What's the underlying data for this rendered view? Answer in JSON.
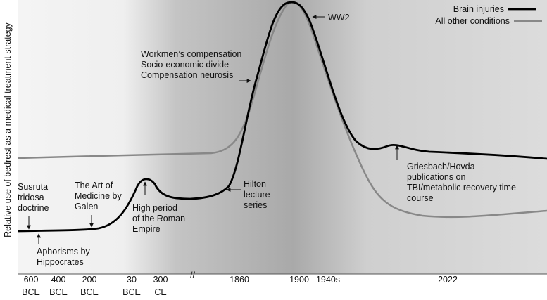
{
  "y_label": "Relative use of bedrest as a medical treatment strategy",
  "legend": [
    "Brain injuries",
    "All other conditions"
  ],
  "x_ticks": [
    [
      "600",
      "BCE"
    ],
    [
      "400",
      "BCE"
    ],
    [
      "200",
      "BCE"
    ],
    [
      "30",
      "BCE"
    ],
    [
      "300",
      "CE"
    ],
    [
      "1860"
    ],
    [
      "1900"
    ],
    [
      "1940s"
    ],
    [
      "2022"
    ]
  ],
  "annotations": [
    [
      "Susruta",
      "tridosa",
      "doctrine"
    ],
    [
      "Aphorisms by",
      "Hippocrates"
    ],
    [
      "The Art of",
      "Medicine by",
      "Galen"
    ],
    [
      "High period",
      "of the Roman",
      "Empire"
    ],
    [
      "Hilton",
      "lecture",
      "series"
    ],
    [
      "Workmen’s compensation",
      "Socio-economic divide",
      "Compensation neurosis"
    ],
    [
      "WW2"
    ],
    [
      "Griesbach/Hovda",
      "publications on",
      "TBI/metabolic recovery time",
      "course"
    ]
  ]
}
